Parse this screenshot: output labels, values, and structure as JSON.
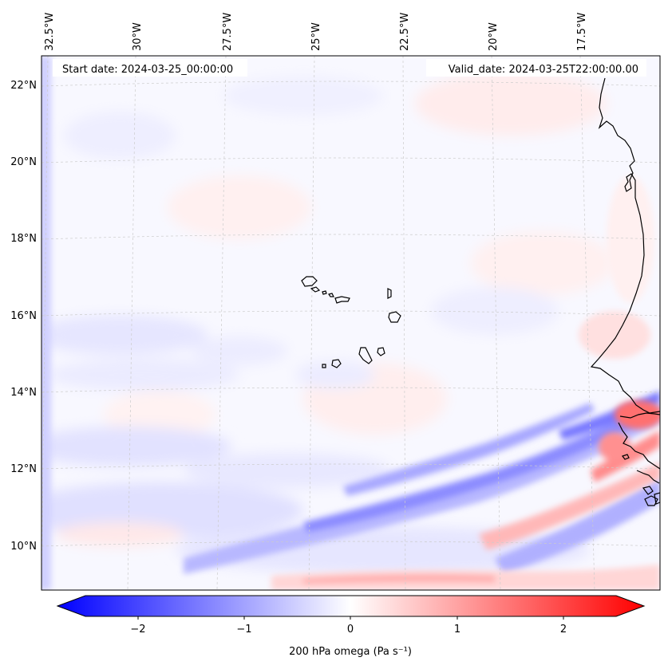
{
  "header": {
    "start_label": "Start date: 2024-03-25_00:00:00",
    "valid_label": "Valid_date: 2024-03-25T22:00:00.00"
  },
  "map": {
    "longitude_labels": [
      "32.5°W",
      "30°W",
      "27.5°W",
      "25°W",
      "22.5°W",
      "20°W",
      "17.5°W"
    ],
    "latitude_labels": [
      "22°N",
      "20°N",
      "18°N",
      "16°N",
      "14°N",
      "12°N",
      "10°N"
    ],
    "region": "Cape Verde Islands and West African coast",
    "field": "200 hPa omega"
  },
  "colorbar": {
    "label": "200 hPa omega (Pa s⁻¹)",
    "tick_labels": [
      "−2",
      "−1",
      "0",
      "1",
      "2"
    ],
    "tick_values": [
      -2,
      -1,
      0,
      1,
      2
    ],
    "range": [
      -2.5,
      2.5
    ],
    "colors": {
      "negative": "#0000ff",
      "zero": "#ffffff",
      "positive": "#ff0000"
    }
  }
}
